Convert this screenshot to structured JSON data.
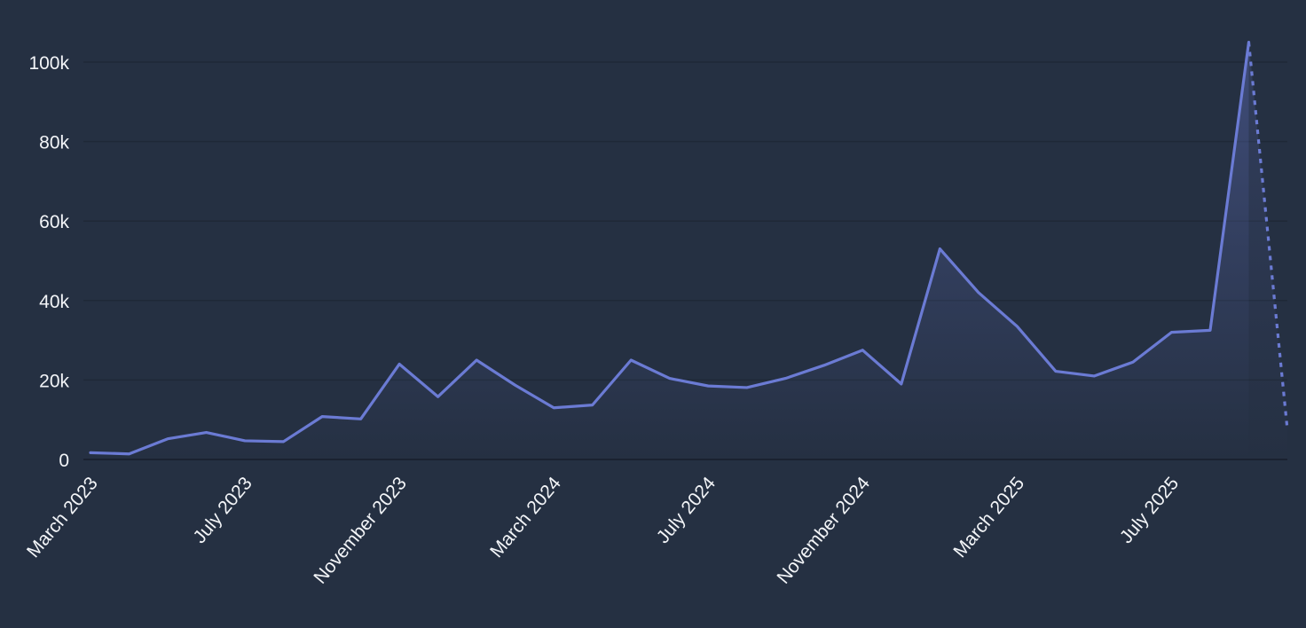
{
  "chart_data": {
    "type": "area",
    "x": [
      "2023-03",
      "2023-04",
      "2023-05",
      "2023-06",
      "2023-07",
      "2023-08",
      "2023-09",
      "2023-10",
      "2023-11",
      "2023-12",
      "2024-01",
      "2024-02",
      "2024-03",
      "2024-04",
      "2024-05",
      "2024-06",
      "2024-07",
      "2024-08",
      "2024-09",
      "2024-10",
      "2024-11",
      "2024-12",
      "2025-01",
      "2025-02",
      "2025-03",
      "2025-04",
      "2025-05",
      "2025-06",
      "2025-07",
      "2025-08",
      "2025-09",
      "2025-10"
    ],
    "series": [
      {
        "values": [
          1700,
          1400,
          5200,
          6800,
          4700,
          4500,
          10800,
          10200,
          24000,
          15800,
          25000,
          18700,
          13000,
          13700,
          25000,
          20400,
          18500,
          18100,
          20400,
          23700,
          27500,
          19000,
          53000,
          42000,
          33500,
          22200,
          21000,
          24500,
          32000,
          32500,
          105000,
          7500
        ],
        "dashed_last_segment": true
      }
    ],
    "x_tick_labels": [
      "March 2023",
      "July 2023",
      "November 2023",
      "March 2024",
      "July 2024",
      "November 2024",
      "March 2025",
      "July 2025"
    ],
    "x_tick_indices": [
      0,
      4,
      8,
      12,
      16,
      20,
      24,
      28
    ],
    "y_tick_labels": [
      "0",
      "20k",
      "40k",
      "60k",
      "80k",
      "100k"
    ],
    "y_tick_values": [
      0,
      20000,
      40000,
      60000,
      80000,
      100000
    ],
    "ylim": [
      0,
      105000
    ],
    "grid": true,
    "title": "",
    "xlabel": "",
    "ylabel": "",
    "colors": {
      "background": "#253042",
      "line": "#6b7bd4",
      "fill": "#6b7bd4",
      "grid": "#1f2937",
      "text": "#f3f5f8"
    }
  }
}
